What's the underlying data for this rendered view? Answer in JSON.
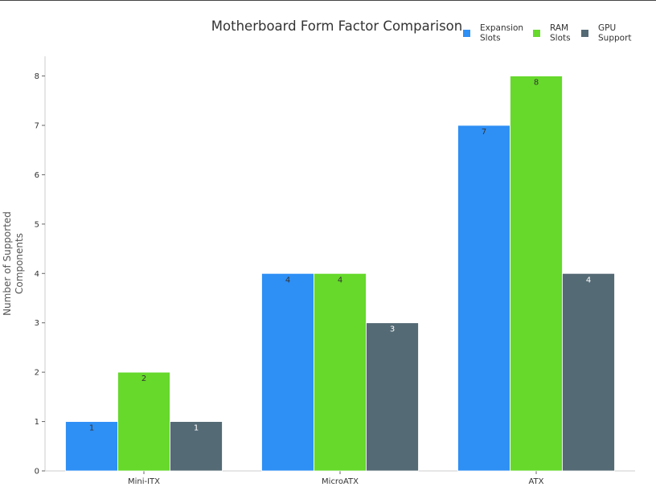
{
  "chart_data": {
    "type": "bar",
    "title": "Motherboard Form Factor Comparison",
    "xlabel": "",
    "ylabel": "Number of Supported Components",
    "ylabel_lines": [
      "Number of Supported",
      "Components"
    ],
    "categories": [
      "Mini-ITX",
      "MicroATX",
      "ATX"
    ],
    "ylim": [
      0,
      8.4
    ],
    "yticks": [
      0,
      1,
      2,
      3,
      4,
      5,
      6,
      7,
      8
    ],
    "grid": false,
    "legend_position": "top-right",
    "series": [
      {
        "name": "Expansion Slots",
        "name_lines": [
          "Expansion",
          "Slots"
        ],
        "color": "#2e8ff5",
        "values": [
          1,
          4,
          7
        ]
      },
      {
        "name": "RAM Slots",
        "name_lines": [
          "RAM",
          "Slots"
        ],
        "color": "#66d92b",
        "values": [
          2,
          4,
          8
        ]
      },
      {
        "name": "GPU Support",
        "name_lines": [
          "GPU",
          "Support"
        ],
        "color": "#546a75",
        "values": [
          1,
          3,
          4
        ]
      }
    ]
  }
}
